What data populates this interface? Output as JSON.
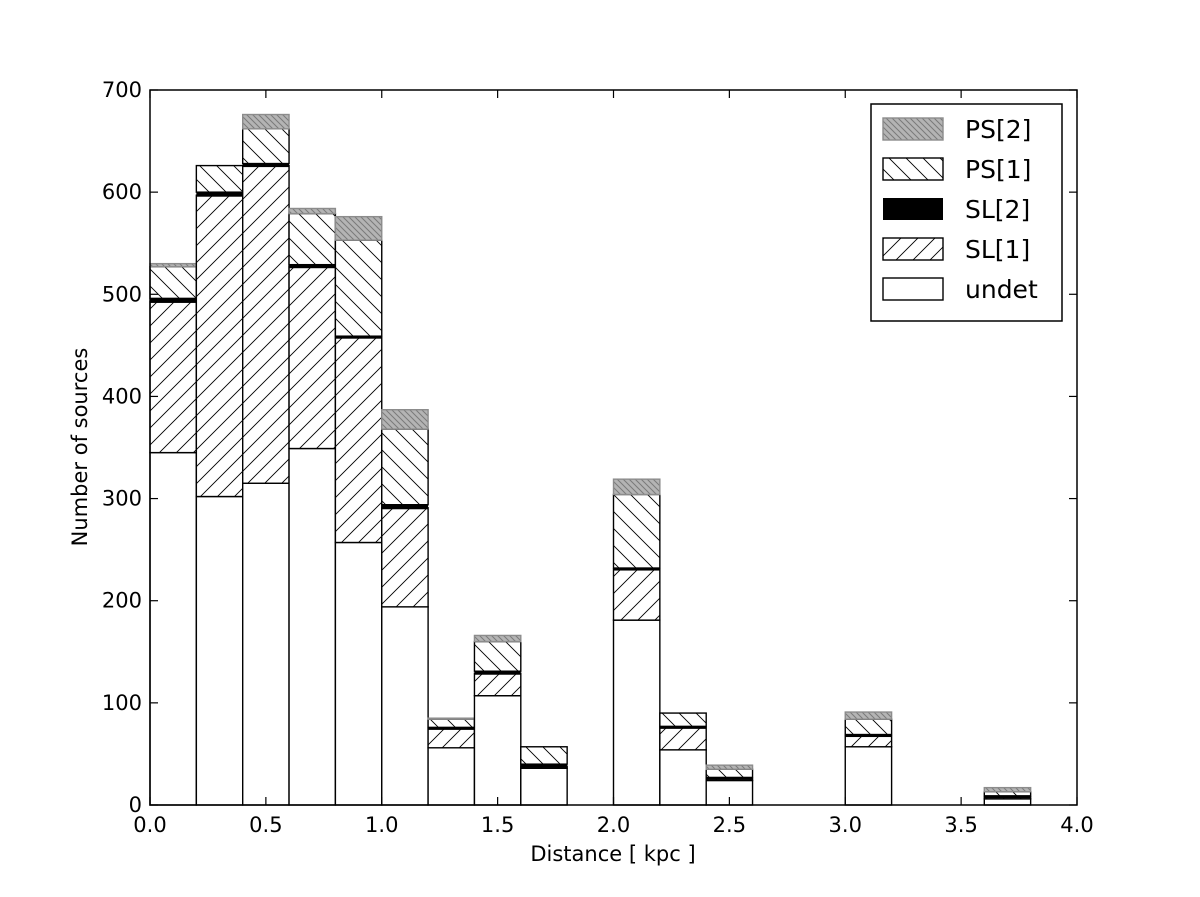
{
  "chart_data": {
    "type": "bar",
    "stacked": true,
    "xlabel": "Distance [ kpc ]",
    "ylabel": "Number of sources",
    "xlim": [
      0.0,
      4.0
    ],
    "ylim": [
      0,
      700
    ],
    "bin_width": 0.2,
    "xticks": [
      "0.0",
      "0.5",
      "1.0",
      "1.5",
      "2.0",
      "2.5",
      "3.0",
      "3.5",
      "4.0"
    ],
    "yticks": [
      "0",
      "100",
      "200",
      "300",
      "400",
      "500",
      "600",
      "700"
    ],
    "legend_position": "top-right",
    "grid": false,
    "bins": [
      0.0,
      0.2,
      0.4,
      0.6,
      0.8,
      1.0,
      1.2,
      1.4,
      1.6,
      1.8,
      2.0,
      2.2,
      2.4,
      2.6,
      2.8,
      3.0,
      3.2,
      3.4,
      3.6
    ],
    "series": [
      {
        "name": "undet",
        "pattern": "none",
        "values": [
          345,
          302,
          315,
          349,
          257,
          194,
          56,
          107,
          36,
          0,
          181,
          54,
          24,
          0,
          0,
          57,
          0,
          0,
          6
        ]
      },
      {
        "name": "SL[1]",
        "pattern": "slash",
        "values": [
          148,
          295,
          311,
          178,
          201,
          97,
          19,
          22,
          2,
          0,
          50,
          22,
          2,
          0,
          0,
          11,
          0,
          0,
          2
        ]
      },
      {
        "name": "SL[2]",
        "pattern": "solid",
        "values": [
          3,
          3,
          2,
          2,
          1,
          3,
          1,
          2,
          2,
          0,
          1,
          1,
          1,
          0,
          0,
          1,
          0,
          0,
          1
        ]
      },
      {
        "name": "PS[1]",
        "pattern": "backslash",
        "values": [
          31,
          26,
          34,
          50,
          94,
          74,
          8,
          29,
          17,
          0,
          72,
          13,
          8,
          0,
          0,
          15,
          0,
          0,
          4
        ]
      },
      {
        "name": "PS[2]",
        "pattern": "gray",
        "values": [
          3,
          0,
          14,
          5,
          23,
          19,
          1,
          6,
          0,
          0,
          15,
          0,
          4,
          0,
          0,
          7,
          0,
          0,
          4
        ]
      }
    ],
    "legend_order": [
      "PS[2]",
      "PS[1]",
      "SL[2]",
      "SL[1]",
      "undet"
    ]
  }
}
